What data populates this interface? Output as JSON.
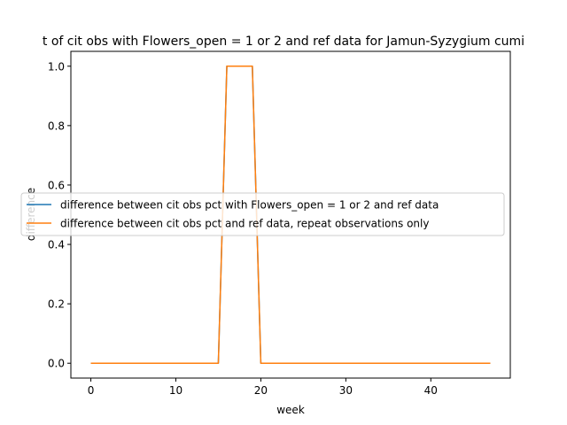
{
  "chart_data": {
    "type": "line",
    "title": "t of cit obs with Flowers_open = 1 or 2 and ref data for Jamun-Syzygium cumi",
    "xlabel": "week",
    "ylabel": "difference",
    "xlim": [
      -2.35,
      49.35
    ],
    "ylim": [
      -0.05,
      1.05
    ],
    "xticks": [
      0,
      10,
      20,
      30,
      40
    ],
    "yticks": [
      0.0,
      0.2,
      0.4,
      0.6,
      0.8,
      1.0
    ],
    "xtick_labels": [
      "0",
      "10",
      "20",
      "30",
      "40"
    ],
    "ytick_labels": [
      "0.0",
      "0.2",
      "0.4",
      "0.6",
      "0.8",
      "1.0"
    ],
    "grid": false,
    "legend": "center-left",
    "x": [
      0,
      1,
      2,
      3,
      4,
      5,
      6,
      7,
      8,
      9,
      10,
      11,
      12,
      13,
      14,
      15,
      16,
      17,
      18,
      19,
      20,
      21,
      22,
      23,
      24,
      25,
      26,
      27,
      28,
      29,
      30,
      31,
      32,
      33,
      34,
      35,
      36,
      37,
      38,
      39,
      40,
      41,
      42,
      43,
      44,
      45,
      46,
      47
    ],
    "series": [
      {
        "name": "difference between cit obs pct with Flowers_open = 1 or 2 and ref data",
        "color": "#1f77b4",
        "values": [
          0,
          0,
          0,
          0,
          0,
          0,
          0,
          0,
          0,
          0,
          0,
          0,
          0,
          0,
          0,
          0,
          1,
          1,
          1,
          1,
          0,
          0,
          0,
          0,
          0,
          0,
          0,
          0,
          0,
          0,
          0,
          0,
          0,
          0,
          0,
          0,
          0,
          0,
          0,
          0,
          0,
          0,
          0,
          0,
          0,
          0,
          0,
          0
        ]
      },
      {
        "name": "difference between cit obs pct and ref data, repeat observations only",
        "color": "#ff7f0e",
        "values": [
          0,
          0,
          0,
          0,
          0,
          0,
          0,
          0,
          0,
          0,
          0,
          0,
          0,
          0,
          0,
          0,
          1,
          1,
          1,
          1,
          0,
          0,
          0,
          0,
          0,
          0,
          0,
          0,
          0,
          0,
          0,
          0,
          0,
          0,
          0,
          0,
          0,
          0,
          0,
          0,
          0,
          0,
          0,
          0,
          0,
          0,
          0,
          0
        ]
      }
    ]
  }
}
